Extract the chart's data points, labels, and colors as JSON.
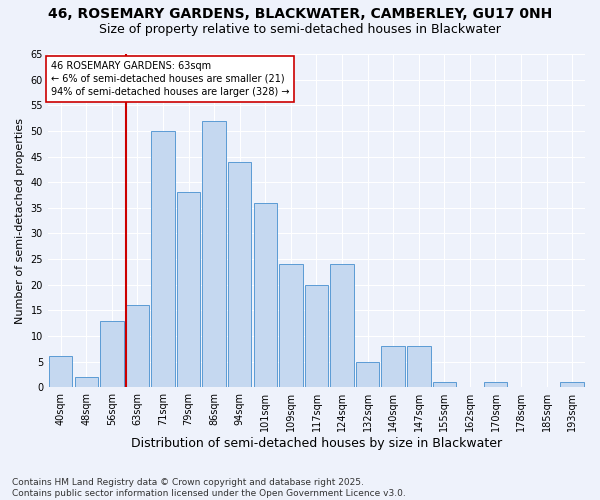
{
  "title1": "46, ROSEMARY GARDENS, BLACKWATER, CAMBERLEY, GU17 0NH",
  "title2": "Size of property relative to semi-detached houses in Blackwater",
  "xlabel": "Distribution of semi-detached houses by size in Blackwater",
  "ylabel": "Number of semi-detached properties",
  "categories": [
    "40sqm",
    "48sqm",
    "56sqm",
    "63sqm",
    "71sqm",
    "79sqm",
    "86sqm",
    "94sqm",
    "101sqm",
    "109sqm",
    "117sqm",
    "124sqm",
    "132sqm",
    "140sqm",
    "147sqm",
    "155sqm",
    "162sqm",
    "170sqm",
    "178sqm",
    "185sqm",
    "193sqm"
  ],
  "values": [
    6,
    2,
    13,
    16,
    50,
    38,
    52,
    44,
    36,
    24,
    20,
    24,
    5,
    8,
    8,
    1,
    0,
    1,
    0,
    0,
    1
  ],
  "bar_color": "#c5d8f0",
  "bar_edge_color": "#5b9bd5",
  "highlight_line_index": 3,
  "highlight_color": "#cc0000",
  "annotation_title": "46 ROSEMARY GARDENS: 63sqm",
  "annotation_line1": "← 6% of semi-detached houses are smaller (21)",
  "annotation_line2": "94% of semi-detached houses are larger (328) →",
  "annotation_box_color": "#ffffff",
  "annotation_box_edge": "#cc0000",
  "ylim": [
    0,
    65
  ],
  "yticks": [
    0,
    5,
    10,
    15,
    20,
    25,
    30,
    35,
    40,
    45,
    50,
    55,
    60,
    65
  ],
  "footer1": "Contains HM Land Registry data © Crown copyright and database right 2025.",
  "footer2": "Contains public sector information licensed under the Open Government Licence v3.0.",
  "bg_color": "#eef2fb",
  "grid_color": "#ffffff",
  "title1_fontsize": 10,
  "title2_fontsize": 9,
  "xlabel_fontsize": 9,
  "ylabel_fontsize": 8,
  "tick_fontsize": 7,
  "annotation_fontsize": 7,
  "footer_fontsize": 6.5
}
